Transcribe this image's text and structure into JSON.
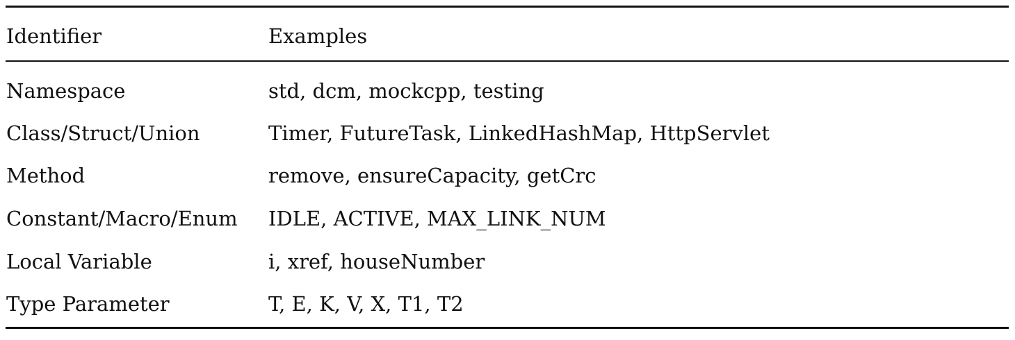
{
  "table": {
    "headers": {
      "identifier": "Identifier",
      "examples": "Examples"
    },
    "rows": [
      {
        "identifier": "Namespace",
        "examples": "std, dcm, mockcpp, testing"
      },
      {
        "identifier": "Class/Struct/Union",
        "examples": "Timer, FutureTask, LinkedHashMap, HttpServlet"
      },
      {
        "identifier": "Method",
        "examples": "remove, ensureCapacity, getCrc"
      },
      {
        "identifier": "Constant/Macro/Enum",
        "examples": "IDLE, ACTIVE, MAX_LINK_NUM"
      },
      {
        "identifier": "Local Variable",
        "examples": "i, xref, houseNumber"
      },
      {
        "identifier": "Type Parameter",
        "examples": "T, E, K, V, X, T1, T2"
      }
    ]
  }
}
